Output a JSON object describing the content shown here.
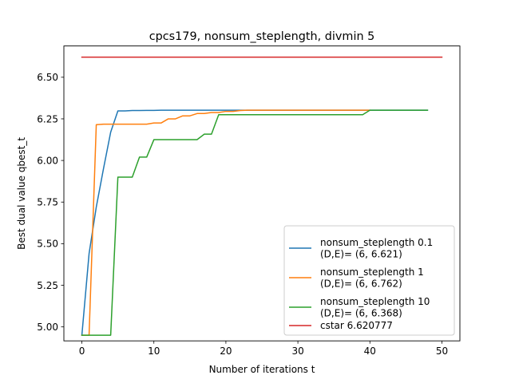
{
  "chart_data": {
    "type": "line",
    "title": "cpcs179, nonsum_steplength, divmin 5",
    "xlabel": "Number of iterations t",
    "ylabel": "Best dual value qbest_t",
    "xlim": [
      -2.5,
      52.5
    ],
    "ylim": [
      4.916,
      6.688
    ],
    "xticks": [
      0,
      10,
      20,
      30,
      40,
      50
    ],
    "yticks": [
      5.0,
      5.25,
      5.5,
      5.75,
      6.0,
      6.25,
      6.5
    ],
    "xtick_labels": [
      "0",
      "10",
      "20",
      "30",
      "40",
      "50"
    ],
    "ytick_labels": [
      "5.00",
      "5.25",
      "5.50",
      "5.75",
      "6.00",
      "6.25",
      "6.50"
    ],
    "grid": false,
    "legend_position": "bottom-right",
    "series": [
      {
        "name": "nonsum_steplength 0.1\n(D,E)= (6, 6.621)",
        "color": "#1f77b4",
        "x": [
          0,
          1,
          2,
          3,
          4,
          5,
          6,
          7,
          8,
          9,
          10,
          11,
          12,
          13,
          14,
          15,
          16,
          17,
          18,
          19,
          20,
          21,
          22,
          23,
          24,
          25,
          26,
          27,
          28,
          29,
          30,
          31,
          32,
          33,
          34,
          35,
          36,
          37,
          38,
          39,
          40,
          41,
          42,
          43,
          44,
          45,
          46,
          47,
          48
        ],
        "y": [
          4.95,
          5.44,
          5.72,
          5.95,
          6.17,
          6.298,
          6.298,
          6.3,
          6.3,
          6.301,
          6.301,
          6.302,
          6.302,
          6.302,
          6.302,
          6.302,
          6.302,
          6.302,
          6.302,
          6.302,
          6.302,
          6.302,
          6.302,
          6.302,
          6.302,
          6.302,
          6.302,
          6.302,
          6.302,
          6.302,
          6.302,
          6.302,
          6.302,
          6.302,
          6.302,
          6.302,
          6.302,
          6.302,
          6.302,
          6.302,
          6.302,
          6.302,
          6.302,
          6.302,
          6.302,
          6.302,
          6.302,
          6.302,
          6.302
        ]
      },
      {
        "name": "nonsum_steplength 1\n(D,E)= (6, 6.762)",
        "color": "#ff7f0e",
        "x": [
          0,
          1,
          2,
          3,
          4,
          5,
          6,
          7,
          8,
          9,
          10,
          11,
          12,
          13,
          14,
          15,
          16,
          17,
          18,
          19,
          20,
          21,
          22,
          23,
          24,
          25,
          26,
          27,
          28,
          29,
          30,
          31,
          32,
          33,
          34,
          35,
          36,
          37,
          38,
          39,
          40
        ],
        "y": [
          4.95,
          4.95,
          6.215,
          6.218,
          6.218,
          6.218,
          6.218,
          6.218,
          6.218,
          6.218,
          6.225,
          6.225,
          6.25,
          6.25,
          6.268,
          6.268,
          6.282,
          6.282,
          6.288,
          6.288,
          6.295,
          6.295,
          6.3,
          6.302,
          6.302,
          6.302,
          6.302,
          6.302,
          6.302,
          6.302,
          6.302,
          6.302,
          6.302,
          6.302,
          6.302,
          6.302,
          6.302,
          6.302,
          6.302,
          6.302,
          6.302
        ]
      },
      {
        "name": "nonsum_steplength 10\n(D,E)= (6, 6.368)",
        "color": "#2ca02c",
        "x": [
          0,
          1,
          2,
          3,
          4,
          5,
          6,
          7,
          8,
          9,
          10,
          11,
          12,
          13,
          14,
          15,
          16,
          17,
          18,
          19,
          20,
          21,
          22,
          23,
          24,
          25,
          26,
          27,
          28,
          29,
          30,
          31,
          32,
          33,
          34,
          35,
          36,
          37,
          38,
          39,
          40,
          41,
          42,
          43,
          44,
          45,
          46,
          47,
          48
        ],
        "y": [
          4.95,
          4.95,
          4.95,
          4.95,
          4.95,
          5.9,
          5.9,
          5.9,
          6.02,
          6.02,
          6.125,
          6.125,
          6.125,
          6.125,
          6.125,
          6.125,
          6.125,
          6.158,
          6.158,
          6.275,
          6.275,
          6.275,
          6.275,
          6.275,
          6.275,
          6.275,
          6.275,
          6.275,
          6.275,
          6.275,
          6.275,
          6.275,
          6.275,
          6.275,
          6.275,
          6.275,
          6.275,
          6.275,
          6.275,
          6.275,
          6.302,
          6.302,
          6.302,
          6.302,
          6.302,
          6.302,
          6.302,
          6.302,
          6.302
        ]
      },
      {
        "name": "cstar 6.620777",
        "color": "#d62728",
        "x": [
          0,
          50
        ],
        "y": [
          6.621,
          6.621
        ]
      }
    ]
  }
}
